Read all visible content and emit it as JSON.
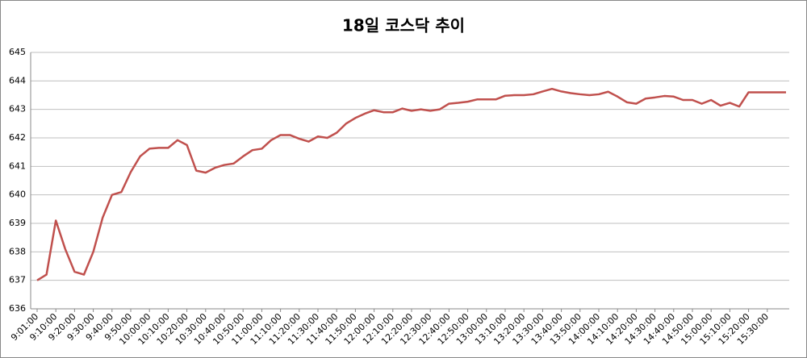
{
  "chart_data": {
    "type": "line",
    "title": "18일 코스닥 추이",
    "categories": [
      "9:01:00",
      null,
      "9:10:00",
      null,
      "9:20:00",
      null,
      "9:30:00",
      null,
      "9:40:00",
      null,
      "9:50:00",
      null,
      "10:00:00",
      null,
      "10:10:00",
      null,
      "10:20:00",
      null,
      "10:30:00",
      null,
      "10:40:00",
      null,
      "10:50:00",
      null,
      "11:00:00",
      null,
      "11:10:00",
      null,
      "11:20:00",
      null,
      "11:30:00",
      null,
      "11:40:00",
      null,
      "11:50:00",
      null,
      "12:00:00",
      null,
      "12:10:00",
      null,
      "12:20:00",
      null,
      "12:30:00",
      null,
      "12:40:00",
      null,
      "12:50:00",
      null,
      "13:00:00",
      null,
      "13:10:00",
      null,
      "13:20:00",
      null,
      "13:30:00",
      null,
      "13:40:00",
      null,
      "13:50:00",
      null,
      "14:00:00",
      null,
      "14:10:00",
      null,
      "14:20:00",
      null,
      "14:30:00",
      null,
      "14:40:00",
      null,
      "14:50:00",
      null,
      "15:00:00",
      null,
      "15:10:00",
      null,
      "15:20:00",
      null,
      "15:30:00",
      null,
      null
    ],
    "series": [
      {
        "name": "코스닥",
        "color": "#c0504d",
        "values": [
          637.0,
          637.2,
          639.1,
          638.1,
          637.3,
          637.2,
          638.0,
          639.2,
          640.0,
          640.1,
          640.8,
          641.35,
          641.62,
          641.65,
          641.65,
          641.92,
          641.75,
          640.85,
          640.78,
          640.95,
          641.05,
          641.1,
          641.35,
          641.57,
          641.62,
          641.92,
          642.1,
          642.1,
          641.97,
          641.87,
          642.05,
          642.0,
          642.18,
          642.5,
          642.7,
          642.85,
          642.97,
          642.9,
          642.9,
          643.03,
          642.95,
          643.0,
          642.95,
          643.0,
          643.2,
          643.23,
          643.27,
          643.35,
          643.35,
          643.35,
          643.48,
          643.5,
          643.5,
          643.53,
          643.63,
          643.72,
          643.63,
          643.57,
          643.53,
          643.5,
          643.53,
          643.62,
          643.45,
          643.25,
          643.2,
          643.38,
          643.42,
          643.47,
          643.45,
          643.33,
          643.33,
          643.2,
          643.33,
          643.13,
          643.23,
          643.1,
          643.6,
          643.6,
          643.6,
          643.6,
          643.6
        ]
      }
    ],
    "ylim": [
      636,
      645
    ],
    "yticks": [
      636,
      637,
      638,
      639,
      640,
      641,
      642,
      643,
      644,
      645
    ],
    "grid": true
  }
}
